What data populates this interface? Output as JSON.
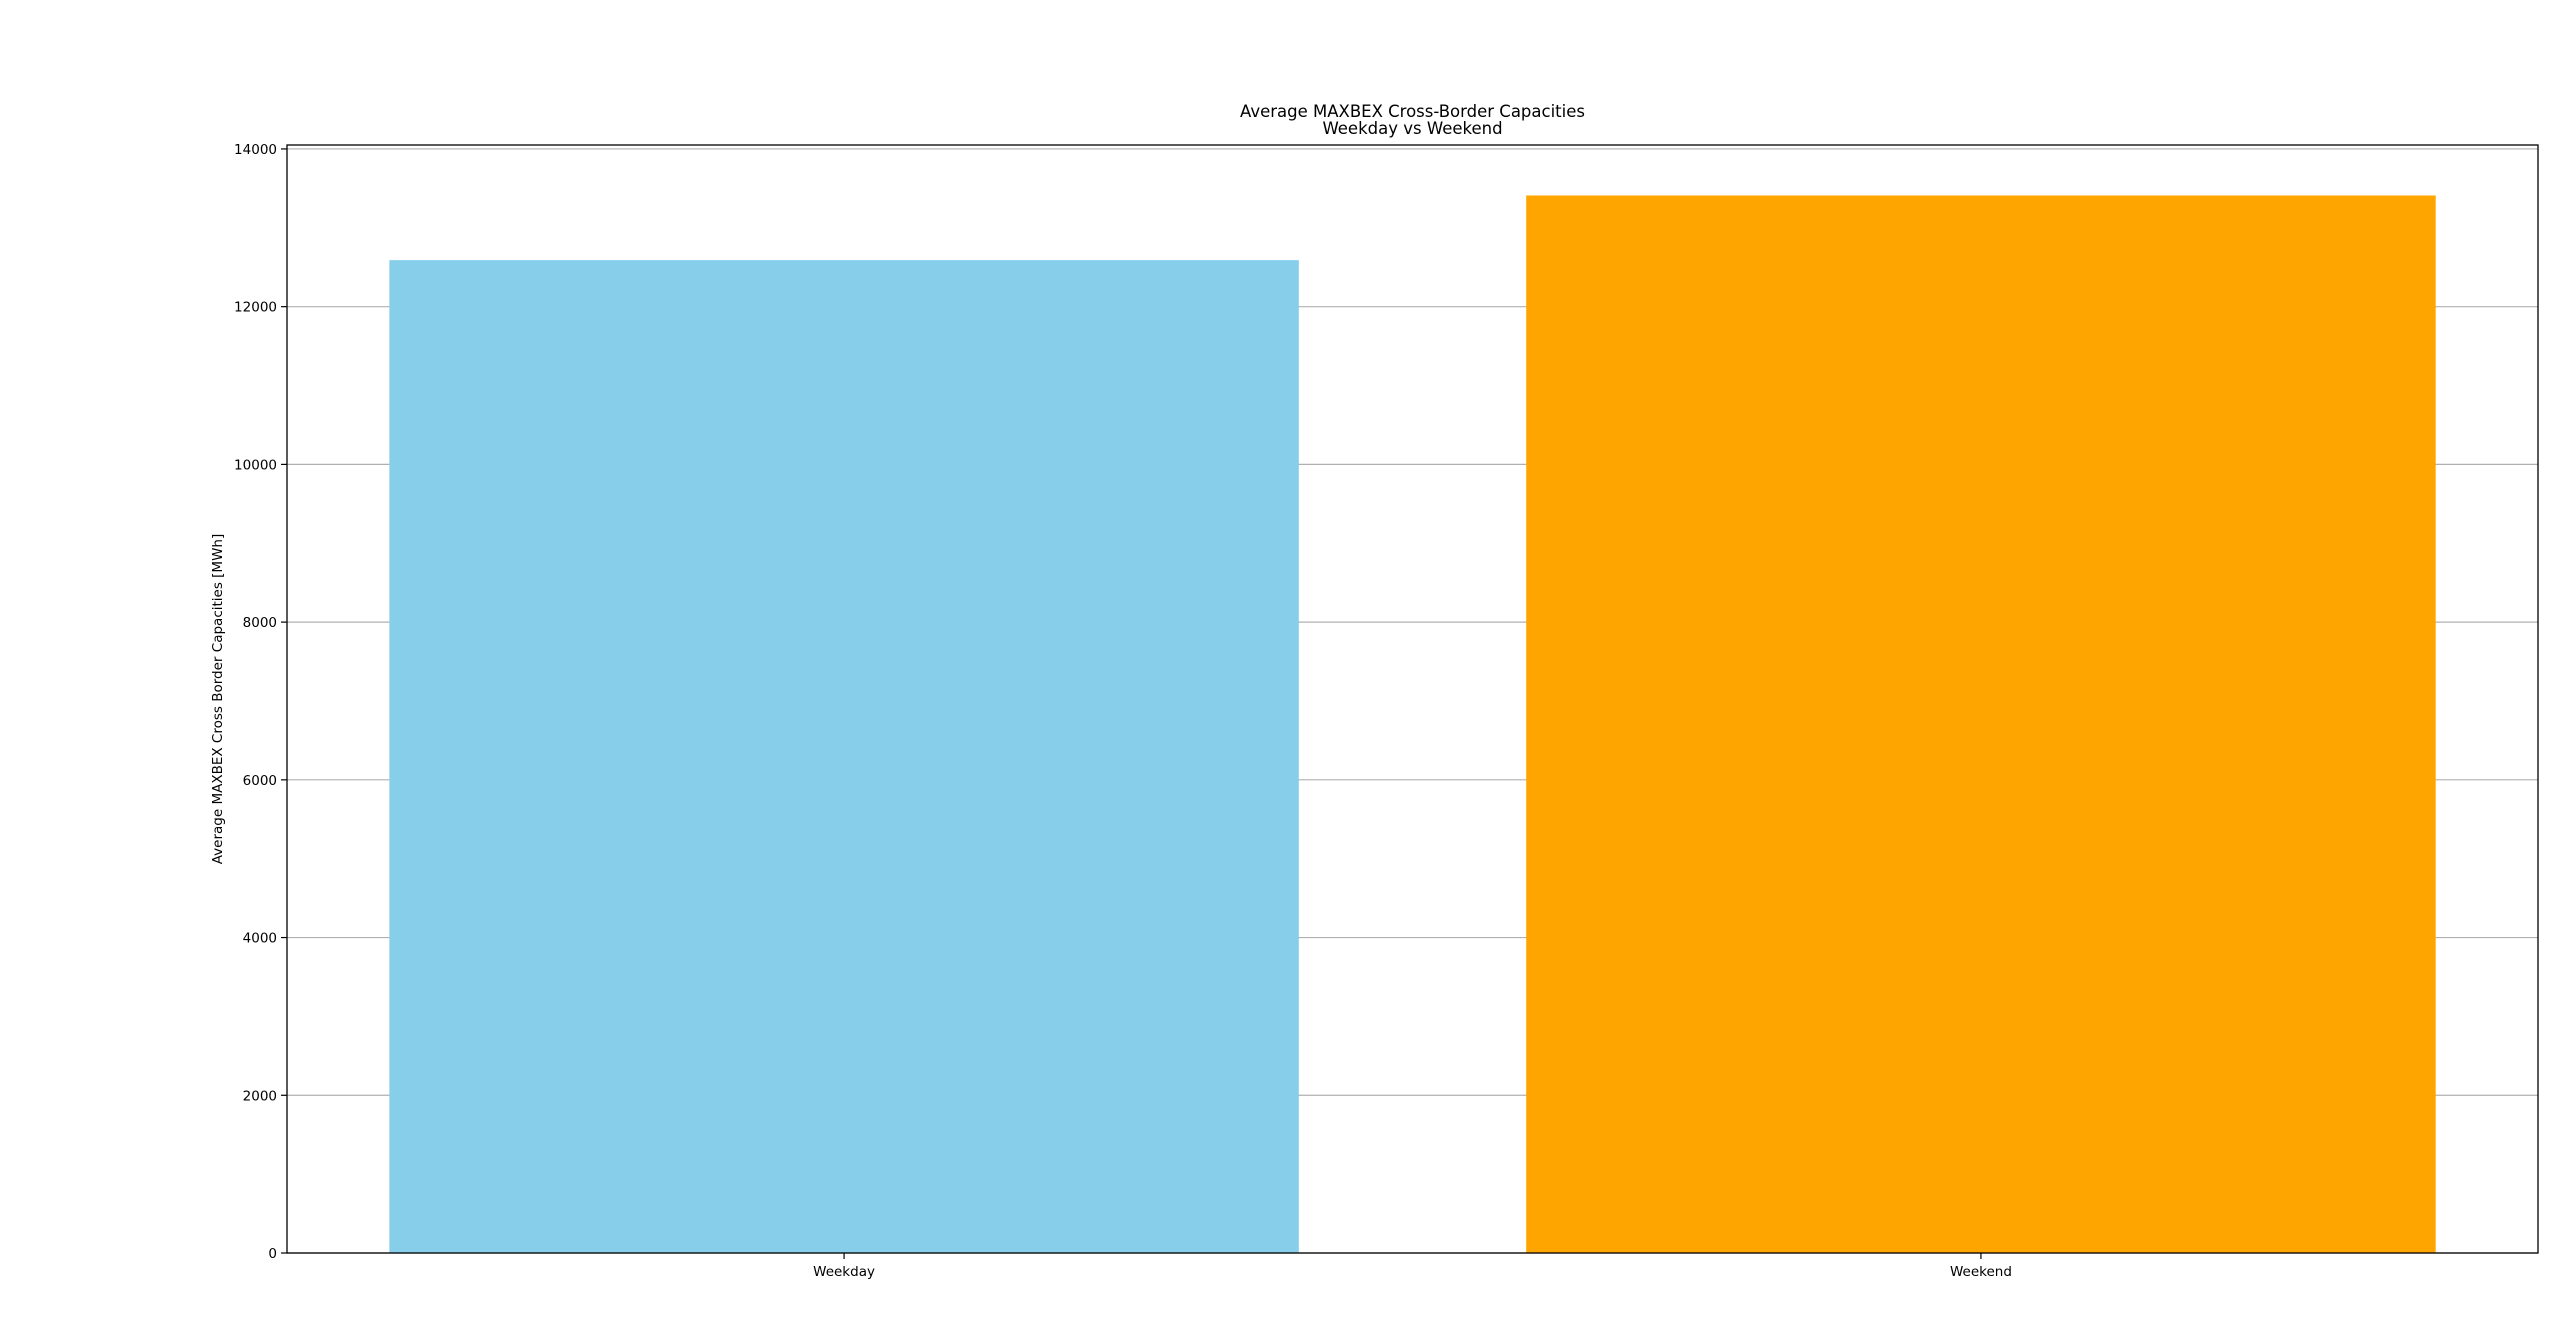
{
  "chart_data": {
    "type": "bar",
    "title": "Average MAXBEX Cross-Border Capacities",
    "subtitle": "Weekday vs Weekend",
    "xlabel": "",
    "ylabel": "Average MAXBEX Cross Border Capacities [MWh]",
    "categories": [
      "Weekday",
      "Weekend"
    ],
    "values": [
      12590,
      13410
    ],
    "colors": [
      "#87ceeb",
      "#ffa500"
    ],
    "ylim": [
      0,
      14050
    ],
    "yticks": [
      0,
      2000,
      4000,
      6000,
      8000,
      10000,
      12000,
      14000
    ],
    "grid": "y-axis",
    "legend": "none"
  }
}
